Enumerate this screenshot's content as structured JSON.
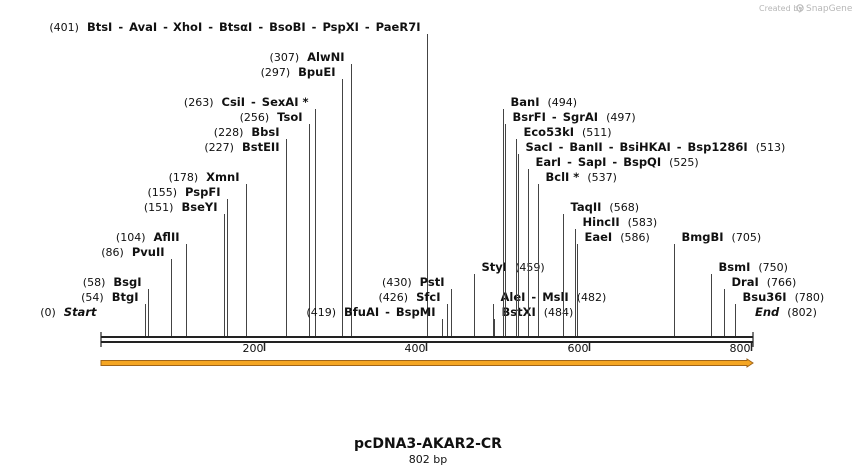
{
  "credit": {
    "prefix": "Created by",
    "brand": "SnapGene"
  },
  "plasmid": {
    "name": "pcDNA3-AKAR2-CR",
    "length_label": "802 bp",
    "length": 802
  },
  "ticks": [
    {
      "pos": 200,
      "label": "200"
    },
    {
      "pos": 400,
      "label": "400"
    },
    {
      "pos": 600,
      "label": "600"
    },
    {
      "pos": 800,
      "label": "800"
    }
  ],
  "features": [
    {
      "name": "orange-feature-arrow",
      "start": 0,
      "end": 802,
      "color": "#f5a623",
      "stroke": "#a0651a"
    }
  ],
  "colors": {
    "line": "#333333",
    "feature": "#f5a623"
  },
  "sites": [
    {
      "pos": 0,
      "row": 0,
      "anchor": "left",
      "parts": [
        {
          "t": "(0)",
          "k": "num"
        },
        {
          "t": "Start",
          "k": "end"
        }
      ]
    },
    {
      "pos": 54,
      "row": 1,
      "anchor": "left",
      "parts": [
        {
          "t": "(54)",
          "k": "num"
        },
        {
          "t": "BtgI",
          "k": "enz"
        }
      ]
    },
    {
      "pos": 58,
      "row": 2,
      "anchor": "left",
      "parts": [
        {
          "t": "(58)",
          "k": "num"
        },
        {
          "t": "BsgI",
          "k": "enz"
        }
      ]
    },
    {
      "pos": 86,
      "row": 4,
      "anchor": "left",
      "parts": [
        {
          "t": "(86)",
          "k": "num"
        },
        {
          "t": "PvuII",
          "k": "enz"
        }
      ]
    },
    {
      "pos": 104,
      "row": 5,
      "anchor": "left",
      "parts": [
        {
          "t": "(104)",
          "k": "num"
        },
        {
          "t": "AflII",
          "k": "enz"
        }
      ]
    },
    {
      "pos": 151,
      "row": 7,
      "anchor": "left",
      "parts": [
        {
          "t": "(151)",
          "k": "num"
        },
        {
          "t": "BseYI",
          "k": "enz"
        }
      ]
    },
    {
      "pos": 155,
      "row": 8,
      "anchor": "left",
      "parts": [
        {
          "t": "(155)",
          "k": "num"
        },
        {
          "t": "PspFI",
          "k": "enz"
        }
      ]
    },
    {
      "pos": 178,
      "row": 9,
      "anchor": "left",
      "parts": [
        {
          "t": "(178)",
          "k": "num"
        },
        {
          "t": "XmnI",
          "k": "enz"
        }
      ]
    },
    {
      "pos": 227,
      "row": 11,
      "anchor": "left",
      "parts": [
        {
          "t": "(227)",
          "k": "num"
        },
        {
          "t": "BstEII",
          "k": "enz"
        }
      ]
    },
    {
      "pos": 228,
      "row": 12,
      "anchor": "left",
      "parts": [
        {
          "t": "(228)",
          "k": "num"
        },
        {
          "t": "BbsI",
          "k": "enz"
        }
      ]
    },
    {
      "pos": 256,
      "row": 13,
      "anchor": "left",
      "parts": [
        {
          "t": "(256)",
          "k": "num"
        },
        {
          "t": "TsoI",
          "k": "enz"
        }
      ]
    },
    {
      "pos": 263,
      "row": 14,
      "anchor": "left",
      "parts": [
        {
          "t": "(263)",
          "k": "num"
        },
        {
          "t": "CsiI",
          "k": "enz"
        },
        {
          "t": "-",
          "k": "sep"
        },
        {
          "t": "SexAI *",
          "k": "enz"
        }
      ]
    },
    {
      "pos": 297,
      "row": 16,
      "anchor": "left",
      "parts": [
        {
          "t": "(297)",
          "k": "num"
        },
        {
          "t": "BpuEI",
          "k": "enz"
        }
      ]
    },
    {
      "pos": 307,
      "row": 17,
      "anchor": "left",
      "parts": [
        {
          "t": "(307)",
          "k": "num"
        },
        {
          "t": "AlwNI",
          "k": "enz"
        }
      ]
    },
    {
      "pos": 401,
      "row": 19,
      "anchor": "left",
      "parts": [
        {
          "t": "(401)",
          "k": "num"
        },
        {
          "t": "BtsI",
          "k": "enz"
        },
        {
          "t": "-",
          "k": "sep"
        },
        {
          "t": "AvaI",
          "k": "enz"
        },
        {
          "t": "-",
          "k": "sep"
        },
        {
          "t": "XhoI",
          "k": "enz"
        },
        {
          "t": "-",
          "k": "sep"
        },
        {
          "t": "BtsαI",
          "k": "enz"
        },
        {
          "t": "-",
          "k": "sep"
        },
        {
          "t": "BsoBI",
          "k": "enz"
        },
        {
          "t": "-",
          "k": "sep"
        },
        {
          "t": "PspXI",
          "k": "enz"
        },
        {
          "t": "-",
          "k": "sep"
        },
        {
          "t": "PaeR7I",
          "k": "enz"
        }
      ]
    },
    {
      "pos": 419,
      "row": 0,
      "anchor": "left",
      "parts": [
        {
          "t": "(419)",
          "k": "num"
        },
        {
          "t": "BfuAI",
          "k": "enz"
        },
        {
          "t": "-",
          "k": "sep"
        },
        {
          "t": "BspMI",
          "k": "enz"
        }
      ]
    },
    {
      "pos": 426,
      "row": 1,
      "anchor": "left",
      "parts": [
        {
          "t": "(426)",
          "k": "num"
        },
        {
          "t": "SfcI",
          "k": "enz"
        }
      ]
    },
    {
      "pos": 430,
      "row": 2,
      "anchor": "left",
      "parts": [
        {
          "t": "(430)",
          "k": "num"
        },
        {
          "t": "PstI",
          "k": "enz"
        }
      ]
    },
    {
      "pos": 459,
      "row": 3,
      "anchor": "right",
      "parts": [
        {
          "t": "StyI",
          "k": "enz"
        },
        {
          "t": "(459)",
          "k": "num"
        }
      ]
    },
    {
      "pos": 482,
      "row": 1,
      "anchor": "right",
      "parts": [
        {
          "t": "AleI",
          "k": "enz"
        },
        {
          "t": "-",
          "k": "sep"
        },
        {
          "t": "MslI",
          "k": "enz"
        },
        {
          "t": "(482)",
          "k": "num"
        }
      ]
    },
    {
      "pos": 484,
      "row": 0,
      "anchor": "right",
      "parts": [
        {
          "t": "BstXI",
          "k": "enz"
        },
        {
          "t": "(484)",
          "k": "num"
        }
      ]
    },
    {
      "pos": 494,
      "row": 14,
      "anchor": "right",
      "parts": [
        {
          "t": "BanI",
          "k": "enz"
        },
        {
          "t": "(494)",
          "k": "num"
        }
      ]
    },
    {
      "pos": 497,
      "row": 13,
      "anchor": "right",
      "parts": [
        {
          "t": "BsrFI",
          "k": "enz"
        },
        {
          "t": "-",
          "k": "sep"
        },
        {
          "t": "SgrAI",
          "k": "enz"
        },
        {
          "t": "(497)",
          "k": "num"
        }
      ]
    },
    {
      "pos": 511,
      "row": 12,
      "anchor": "right",
      "parts": [
        {
          "t": "Eco53kI",
          "k": "enz"
        },
        {
          "t": "(511)",
          "k": "num"
        }
      ]
    },
    {
      "pos": 513,
      "row": 11,
      "anchor": "right",
      "parts": [
        {
          "t": "SacI",
          "k": "enz"
        },
        {
          "t": "-",
          "k": "sep"
        },
        {
          "t": "BanII",
          "k": "enz"
        },
        {
          "t": "-",
          "k": "sep"
        },
        {
          "t": "BsiHKAI",
          "k": "enz"
        },
        {
          "t": "-",
          "k": "sep"
        },
        {
          "t": "Bsp1286I",
          "k": "enz"
        },
        {
          "t": "(513)",
          "k": "num"
        }
      ]
    },
    {
      "pos": 525,
      "row": 10,
      "anchor": "right",
      "parts": [
        {
          "t": "EarI",
          "k": "enz"
        },
        {
          "t": "-",
          "k": "sep"
        },
        {
          "t": "SapI",
          "k": "enz"
        },
        {
          "t": "-",
          "k": "sep"
        },
        {
          "t": "BspQI",
          "k": "enz"
        },
        {
          "t": "(525)",
          "k": "num"
        }
      ]
    },
    {
      "pos": 537,
      "row": 9,
      "anchor": "right",
      "parts": [
        {
          "t": "BclI *",
          "k": "enz"
        },
        {
          "t": "(537)",
          "k": "num"
        }
      ]
    },
    {
      "pos": 568,
      "row": 7,
      "anchor": "right",
      "parts": [
        {
          "t": "TaqII",
          "k": "enz"
        },
        {
          "t": "(568)",
          "k": "num"
        }
      ]
    },
    {
      "pos": 583,
      "row": 6,
      "anchor": "right",
      "parts": [
        {
          "t": "HincII",
          "k": "enz"
        },
        {
          "t": "(583)",
          "k": "num"
        }
      ]
    },
    {
      "pos": 586,
      "row": 5,
      "anchor": "right",
      "parts": [
        {
          "t": "EaeI",
          "k": "enz"
        },
        {
          "t": "(586)",
          "k": "num"
        }
      ]
    },
    {
      "pos": 705,
      "row": 5,
      "anchor": "right",
      "parts": [
        {
          "t": "BmgBI",
          "k": "enz"
        },
        {
          "t": "(705)",
          "k": "num"
        }
      ]
    },
    {
      "pos": 750,
      "row": 3,
      "anchor": "right",
      "parts": [
        {
          "t": "BsmI",
          "k": "enz"
        },
        {
          "t": "(750)",
          "k": "num"
        }
      ]
    },
    {
      "pos": 766,
      "row": 2,
      "anchor": "right",
      "parts": [
        {
          "t": "DraI",
          "k": "enz"
        },
        {
          "t": "(766)",
          "k": "num"
        }
      ]
    },
    {
      "pos": 780,
      "row": 1,
      "anchor": "right",
      "parts": [
        {
          "t": "Bsu36I",
          "k": "enz"
        },
        {
          "t": "(780)",
          "k": "num"
        }
      ]
    },
    {
      "pos": 802,
      "row": 0,
      "anchor": "right",
      "parts": [
        {
          "t": "End",
          "k": "end"
        },
        {
          "t": "(802)",
          "k": "num"
        }
      ]
    }
  ]
}
